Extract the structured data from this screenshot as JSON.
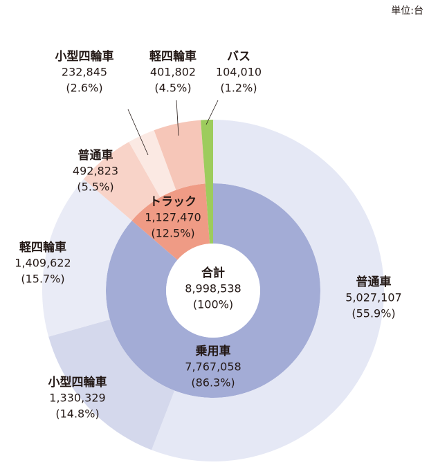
{
  "chart_data": {
    "type": "sunburst",
    "unit_label": "単位:台",
    "total": {
      "name": "合計",
      "value": 8998538,
      "value_label": "8,998,538",
      "share": 100,
      "share_label": "(100%)",
      "color": "#ffffff"
    },
    "groups": [
      {
        "name": "乗用車",
        "value": 7767058,
        "value_label": "7,767,058",
        "share": 86.3,
        "share_label": "(86.3%)",
        "color": "#a3acd6",
        "children": [
          {
            "name": "普通車",
            "value": 5027107,
            "value_label": "5,027,107",
            "share": 55.9,
            "share_label": "(55.9%)",
            "color": "#e5e8f5"
          },
          {
            "name": "小型四輪車",
            "value": 1330329,
            "value_label": "1,330,329",
            "share": 14.8,
            "share_label": "(14.8%)",
            "color": "#d4d8ec"
          },
          {
            "name": "軽四輪車",
            "value": 1409622,
            "value_label": "1,409,622",
            "share": 15.7,
            "share_label": "(15.7%)",
            "color": "#e9ebf6"
          }
        ]
      },
      {
        "name": "トラック",
        "value": 1127470,
        "value_label": "1,127,470",
        "share": 12.5,
        "share_label": "(12.5%)",
        "color": "#ef9b85",
        "children": [
          {
            "name": "普通車",
            "value": 492823,
            "value_label": "492,823",
            "share": 5.5,
            "share_label": "(5.5%)",
            "color": "#f8d3c8"
          },
          {
            "name": "小型四輪車",
            "value": 232845,
            "value_label": "232,845",
            "share": 2.6,
            "share_label": "(2.6%)",
            "color": "#fbe9e3"
          },
          {
            "name": "軽四輪車",
            "value": 401802,
            "value_label": "401,802",
            "share": 4.5,
            "share_label": "(4.5%)",
            "color": "#f6c6b8"
          }
        ]
      },
      {
        "name": "バス",
        "value": 104010,
        "value_label": "104,010",
        "share": 1.2,
        "share_label": "(1.2%)",
        "color": "#9dcc5d",
        "children": []
      }
    ]
  }
}
